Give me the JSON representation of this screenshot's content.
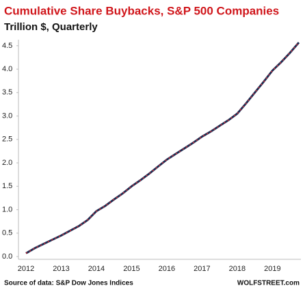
{
  "chart_data": {
    "type": "line",
    "title": "Cumulative Share Buybacks, S&P 500 Companies",
    "subtitle": "Trillion $, Quarterly",
    "source": "Source of data: S&P Dow Jones Indices",
    "credit": "WOLFSTREET.com",
    "categories": [
      "2012",
      null,
      null,
      null,
      "2013",
      null,
      null,
      null,
      "2014",
      null,
      null,
      null,
      "2015",
      null,
      null,
      null,
      "2016",
      null,
      null,
      null,
      "2017",
      null,
      null,
      null,
      "2018",
      null,
      null,
      null,
      "2019",
      null,
      null,
      null
    ],
    "series": [
      {
        "name": "Cumulative buybacks",
        "color": "#1f2d52",
        "dash_color": "#e0303a",
        "values": [
          0.07,
          0.18,
          0.27,
          0.36,
          0.45,
          0.55,
          0.65,
          0.78,
          0.97,
          1.08,
          1.22,
          1.35,
          1.5,
          1.63,
          1.77,
          1.92,
          2.07,
          2.19,
          2.31,
          2.43,
          2.56,
          2.67,
          2.79,
          2.91,
          3.05,
          3.27,
          3.5,
          3.73,
          3.97,
          4.15,
          4.35,
          4.57
        ]
      }
    ],
    "ylim": [
      0,
      4.6
    ],
    "yticks": [
      {
        "value": 0,
        "label": "0.0"
      },
      0.5,
      {
        "value": 1,
        "label": "1.0"
      },
      1.5,
      {
        "value": 2,
        "label": "2.0"
      },
      2.5,
      {
        "value": 3,
        "label": "3.0"
      },
      3.5,
      {
        "value": 4,
        "label": "4.0"
      },
      4.5
    ],
    "grid": false
  }
}
